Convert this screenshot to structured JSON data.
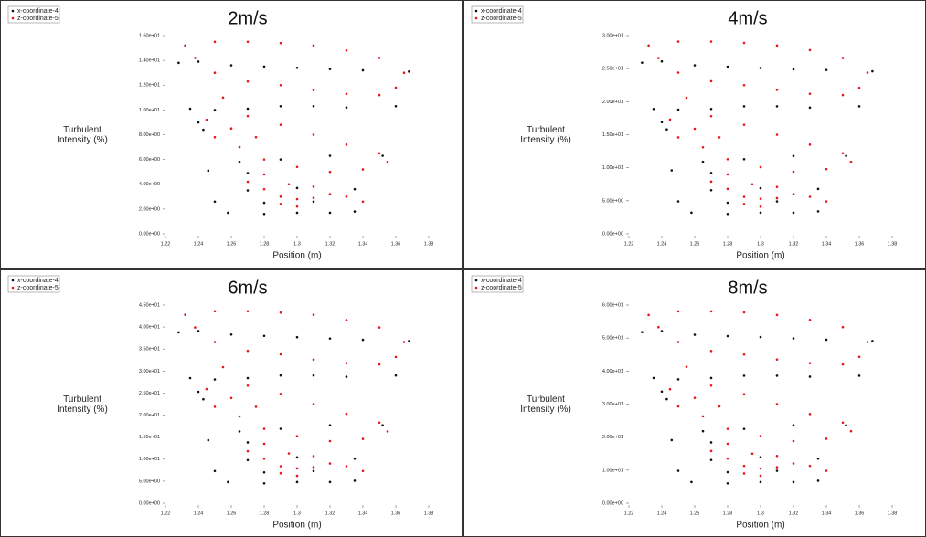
{
  "chart_data": [
    {
      "type": "scatter",
      "title": "2m/s",
      "x_label": "Position (m)",
      "y_label": "Turbulent Intensity (%)",
      "xlim": [
        1.22,
        1.38
      ],
      "xticks": [
        1.22,
        1.24,
        1.26,
        1.28,
        1.3,
        1.32,
        1.34,
        1.36,
        1.38
      ],
      "ylim": [
        0,
        16
      ],
      "yticks": [
        {
          "value": 0,
          "label": "0.00e+00"
        },
        {
          "value": 2,
          "label": "2.00e+00"
        },
        {
          "value": 4,
          "label": "4.00e+00"
        },
        {
          "value": 6,
          "label": "6.00e+00"
        },
        {
          "value": 8,
          "label": "8.00e+00"
        },
        {
          "value": 10,
          "label": "1.00e+01"
        },
        {
          "value": 12,
          "label": "1.20e+01"
        },
        {
          "value": 14,
          "label": "1.40e+01"
        },
        {
          "value": 16,
          "label": "1.60e+01"
        }
      ],
      "series": [
        {
          "name": "x-coordinate-4",
          "color": "#111111",
          "x": [
            1.228,
            1.24,
            1.26,
            1.28,
            1.3,
            1.32,
            1.34,
            1.368,
            1.235,
            1.25,
            1.27,
            1.29,
            1.31,
            1.33,
            1.36,
            1.265,
            1.29,
            1.32,
            1.352,
            1.246,
            1.27,
            1.27,
            1.3,
            1.335,
            1.25,
            1.28,
            1.31,
            1.258,
            1.28,
            1.3,
            1.32,
            1.335,
            1.24,
            1.243
          ],
          "values": [
            13.8,
            13.9,
            13.6,
            13.5,
            13.4,
            13.3,
            13.2,
            13.1,
            10.1,
            10.0,
            10.1,
            10.3,
            10.3,
            10.2,
            10.3,
            5.8,
            6.0,
            6.3,
            6.3,
            5.1,
            4.9,
            3.5,
            3.7,
            3.6,
            2.6,
            2.5,
            2.6,
            1.7,
            1.6,
            1.7,
            1.7,
            1.8,
            9.0,
            8.4
          ]
        },
        {
          "name": "z-coordinate-5",
          "color": "#e8141e",
          "x": [
            1.232,
            1.25,
            1.27,
            1.29,
            1.31,
            1.33,
            1.35,
            1.365,
            1.36,
            1.35,
            1.33,
            1.31,
            1.29,
            1.27,
            1.25,
            1.238,
            1.255,
            1.27,
            1.29,
            1.31,
            1.33,
            1.35,
            1.355,
            1.34,
            1.32,
            1.3,
            1.28,
            1.265,
            1.26,
            1.27,
            1.28,
            1.29,
            1.3,
            1.31,
            1.32,
            1.33,
            1.34,
            1.29,
            1.3,
            1.28,
            1.295,
            1.31,
            1.25,
            1.245,
            1.275
          ],
          "values": [
            15.2,
            15.5,
            15.5,
            15.4,
            15.2,
            14.8,
            14.2,
            13.0,
            11.8,
            11.2,
            11.3,
            11.6,
            12.0,
            12.3,
            13.0,
            14.2,
            11.0,
            9.5,
            8.8,
            8.0,
            7.2,
            6.5,
            5.8,
            5.2,
            5.0,
            5.4,
            6.0,
            7.0,
            8.5,
            4.2,
            3.6,
            3.0,
            2.8,
            2.9,
            3.2,
            3.0,
            2.6,
            2.4,
            2.2,
            4.8,
            4.0,
            3.8,
            7.8,
            9.2,
            7.8
          ]
        }
      ]
    },
    {
      "type": "scatter",
      "title": "4m/s",
      "x_label": "Position (m)",
      "y_label": "Turbulent Intensity (%)",
      "xlim": [
        1.22,
        1.38
      ],
      "xticks": [
        1.22,
        1.24,
        1.26,
        1.28,
        1.3,
        1.32,
        1.34,
        1.36,
        1.38
      ],
      "ylim": [
        0,
        30
      ],
      "yticks": [
        {
          "value": 0,
          "label": "0.00e+00"
        },
        {
          "value": 5,
          "label": "5.00e+00"
        },
        {
          "value": 10,
          "label": "1.00e+01"
        },
        {
          "value": 15,
          "label": "1.50e+01"
        },
        {
          "value": 20,
          "label": "2.00e+01"
        },
        {
          "value": 25,
          "label": "2.50e+01"
        },
        {
          "value": 30,
          "label": "3.00e+01"
        }
      ],
      "series": [
        {
          "name": "x-coordinate-4",
          "color": "#111111",
          "x": [
            1.228,
            1.24,
            1.26,
            1.28,
            1.3,
            1.32,
            1.34,
            1.368,
            1.235,
            1.25,
            1.27,
            1.29,
            1.31,
            1.33,
            1.36,
            1.265,
            1.29,
            1.32,
            1.352,
            1.246,
            1.27,
            1.27,
            1.3,
            1.335,
            1.25,
            1.28,
            1.31,
            1.258,
            1.28,
            1.3,
            1.32,
            1.335,
            1.24,
            1.243
          ],
          "values": [
            25.9,
            26.1,
            25.5,
            25.3,
            25.1,
            24.9,
            24.8,
            24.6,
            18.9,
            18.8,
            18.9,
            19.3,
            19.3,
            19.1,
            19.3,
            10.9,
            11.3,
            11.8,
            11.8,
            9.6,
            9.2,
            6.6,
            6.9,
            6.8,
            4.9,
            4.7,
            4.9,
            3.2,
            3.0,
            3.2,
            3.2,
            3.4,
            16.9,
            15.8
          ]
        },
        {
          "name": "z-coordinate-5",
          "color": "#e8141e",
          "x": [
            1.232,
            1.25,
            1.27,
            1.29,
            1.31,
            1.33,
            1.35,
            1.365,
            1.36,
            1.35,
            1.33,
            1.31,
            1.29,
            1.27,
            1.25,
            1.238,
            1.255,
            1.27,
            1.29,
            1.31,
            1.33,
            1.35,
            1.355,
            1.34,
            1.32,
            1.3,
            1.28,
            1.265,
            1.26,
            1.27,
            1.28,
            1.29,
            1.3,
            1.31,
            1.32,
            1.33,
            1.34,
            1.29,
            1.3,
            1.28,
            1.295,
            1.31,
            1.25,
            1.245,
            1.275
          ],
          "values": [
            28.5,
            29.1,
            29.1,
            28.9,
            28.5,
            27.8,
            26.6,
            24.4,
            22.1,
            21.0,
            21.2,
            21.8,
            22.5,
            23.1,
            24.4,
            26.6,
            20.6,
            17.8,
            16.5,
            15.0,
            13.5,
            12.2,
            10.9,
            9.8,
            9.4,
            10.1,
            11.3,
            13.1,
            15.9,
            7.9,
            6.8,
            5.6,
            5.3,
            5.4,
            6.0,
            5.6,
            4.9,
            4.5,
            4.1,
            9.0,
            7.5,
            7.1,
            14.6,
            17.3,
            14.6
          ]
        }
      ]
    },
    {
      "type": "scatter",
      "title": "6m/s",
      "x_label": "Position (m)",
      "y_label": "Turbulent Intensity (%)",
      "xlim": [
        1.22,
        1.38
      ],
      "xticks": [
        1.22,
        1.24,
        1.26,
        1.28,
        1.3,
        1.32,
        1.34,
        1.36,
        1.38
      ],
      "ylim": [
        0,
        45
      ],
      "yticks": [
        {
          "value": 0,
          "label": "0.00e+00"
        },
        {
          "value": 5,
          "label": "5.00e+00"
        },
        {
          "value": 10,
          "label": "1.00e+01"
        },
        {
          "value": 15,
          "label": "1.50e+01"
        },
        {
          "value": 20,
          "label": "2.00e+01"
        },
        {
          "value": 25,
          "label": "2.50e+01"
        },
        {
          "value": 30,
          "label": "3.00e+01"
        },
        {
          "value": 35,
          "label": "3.50e+01"
        },
        {
          "value": 40,
          "label": "4.00e+01"
        },
        {
          "value": 45,
          "label": "4.50e+01"
        }
      ],
      "series": [
        {
          "name": "x-coordinate-4",
          "color": "#111111",
          "x": [
            1.228,
            1.24,
            1.26,
            1.28,
            1.3,
            1.32,
            1.34,
            1.368,
            1.235,
            1.25,
            1.27,
            1.29,
            1.31,
            1.33,
            1.36,
            1.265,
            1.29,
            1.32,
            1.352,
            1.246,
            1.27,
            1.27,
            1.3,
            1.335,
            1.25,
            1.28,
            1.31,
            1.258,
            1.28,
            1.3,
            1.32,
            1.335,
            1.24,
            1.243
          ],
          "values": [
            38.8,
            39.1,
            38.3,
            38.0,
            37.7,
            37.4,
            37.1,
            36.8,
            28.4,
            28.1,
            28.4,
            29.0,
            29.0,
            28.7,
            29.0,
            16.3,
            16.9,
            17.7,
            17.7,
            14.3,
            13.8,
            9.8,
            10.4,
            10.1,
            7.3,
            7.0,
            7.3,
            4.8,
            4.5,
            4.8,
            4.8,
            5.1,
            25.3,
            23.6
          ]
        },
        {
          "name": "z-coordinate-5",
          "color": "#e8141e",
          "x": [
            1.232,
            1.25,
            1.27,
            1.29,
            1.31,
            1.33,
            1.35,
            1.365,
            1.36,
            1.35,
            1.33,
            1.31,
            1.29,
            1.27,
            1.25,
            1.238,
            1.255,
            1.27,
            1.29,
            1.31,
            1.33,
            1.35,
            1.355,
            1.34,
            1.32,
            1.3,
            1.28,
            1.265,
            1.26,
            1.27,
            1.28,
            1.29,
            1.3,
            1.31,
            1.32,
            1.33,
            1.34,
            1.29,
            1.3,
            1.28,
            1.295,
            1.31,
            1.25,
            1.245,
            1.275
          ],
          "values": [
            42.8,
            43.6,
            43.6,
            43.3,
            42.8,
            41.6,
            39.9,
            36.6,
            33.2,
            31.5,
            31.8,
            32.6,
            33.8,
            34.6,
            36.6,
            39.9,
            30.9,
            26.7,
            24.8,
            22.5,
            20.3,
            18.3,
            16.3,
            14.6,
            14.1,
            15.2,
            16.9,
            19.7,
            23.9,
            11.8,
            10.1,
            8.4,
            7.9,
            8.2,
            9.0,
            8.4,
            7.3,
            6.8,
            6.2,
            13.5,
            11.3,
            10.7,
            21.9,
            25.9,
            21.9
          ]
        }
      ]
    },
    {
      "type": "scatter",
      "title": "8m/s",
      "x_label": "Position (m)",
      "y_label": "Turbulent Intensity (%)",
      "xlim": [
        1.22,
        1.38
      ],
      "xticks": [
        1.22,
        1.24,
        1.26,
        1.28,
        1.3,
        1.32,
        1.34,
        1.36,
        1.38
      ],
      "ylim": [
        0,
        60
      ],
      "yticks": [
        {
          "value": 0,
          "label": "0.00e+00"
        },
        {
          "value": 10,
          "label": "1.00e+01"
        },
        {
          "value": 20,
          "label": "2.00e+01"
        },
        {
          "value": 30,
          "label": "3.00e+01"
        },
        {
          "value": 40,
          "label": "4.00e+01"
        },
        {
          "value": 50,
          "label": "5.00e+01"
        },
        {
          "value": 60,
          "label": "6.00e+01"
        }
      ],
      "series": [
        {
          "name": "x-coordinate-4",
          "color": "#111111",
          "x": [
            1.228,
            1.24,
            1.26,
            1.28,
            1.3,
            1.32,
            1.34,
            1.368,
            1.235,
            1.25,
            1.27,
            1.29,
            1.31,
            1.33,
            1.36,
            1.265,
            1.29,
            1.32,
            1.352,
            1.246,
            1.27,
            1.27,
            1.3,
            1.335,
            1.25,
            1.28,
            1.31,
            1.258,
            1.28,
            1.3,
            1.32,
            1.335,
            1.24,
            1.243
          ],
          "values": [
            51.8,
            52.1,
            51.0,
            50.6,
            50.3,
            49.9,
            49.5,
            49.1,
            37.9,
            37.5,
            37.9,
            38.6,
            38.6,
            38.3,
            38.6,
            21.8,
            22.5,
            23.6,
            23.6,
            19.1,
            18.4,
            13.1,
            13.9,
            13.5,
            9.8,
            9.4,
            9.8,
            6.4,
            6.0,
            6.4,
            6.4,
            6.8,
            33.8,
            31.5
          ]
        },
        {
          "name": "z-coordinate-5",
          "color": "#e8141e",
          "x": [
            1.232,
            1.25,
            1.27,
            1.29,
            1.31,
            1.33,
            1.35,
            1.365,
            1.36,
            1.35,
            1.33,
            1.31,
            1.29,
            1.27,
            1.25,
            1.238,
            1.255,
            1.27,
            1.29,
            1.31,
            1.33,
            1.35,
            1.355,
            1.34,
            1.32,
            1.3,
            1.28,
            1.265,
            1.26,
            1.27,
            1.28,
            1.29,
            1.3,
            1.31,
            1.32,
            1.33,
            1.34,
            1.29,
            1.3,
            1.28,
            1.295,
            1.31,
            1.25,
            1.245,
            1.275
          ],
          "values": [
            57.0,
            58.1,
            58.1,
            57.8,
            57.0,
            55.5,
            53.3,
            48.8,
            44.3,
            42.0,
            42.4,
            43.5,
            45.0,
            46.1,
            48.8,
            53.3,
            41.3,
            35.6,
            33.0,
            30.0,
            27.0,
            24.4,
            21.8,
            19.5,
            18.8,
            20.3,
            22.5,
            26.3,
            31.9,
            15.8,
            13.5,
            11.3,
            10.5,
            10.9,
            12.0,
            11.3,
            9.8,
            9.0,
            8.3,
            18.0,
            15.0,
            14.3,
            29.3,
            34.5,
            29.3
          ]
        }
      ]
    }
  ]
}
